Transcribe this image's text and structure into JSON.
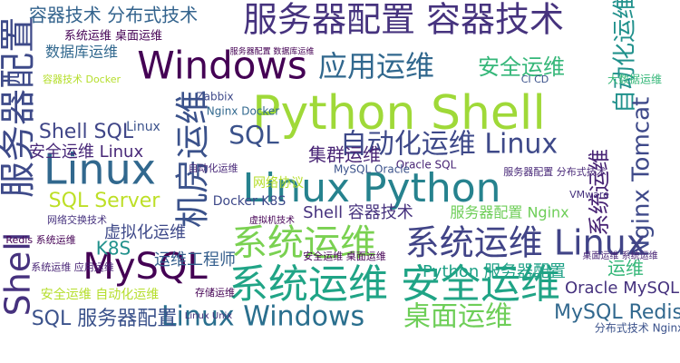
{
  "chart_data": {
    "type": "wordcloud",
    "words": [
      {
        "text": "Python Shell",
        "color": "#9fd938"
      },
      {
        "text": "服务器配置 容器技术",
        "color": "#46337e"
      },
      {
        "text": "Windows",
        "color": "#440154"
      },
      {
        "text": "应用运维",
        "color": "#31688e"
      },
      {
        "text": "安全运维",
        "color": "#35b779"
      },
      {
        "text": "自动化运维",
        "color": "#21918c"
      },
      {
        "text": "Linux",
        "color": "#31688e"
      },
      {
        "text": "服务器配置",
        "color": "#3e4a89"
      },
      {
        "text": "Shell",
        "color": "#46327e"
      },
      {
        "text": "机房运维",
        "color": "#3b528b"
      },
      {
        "text": "Linux Python",
        "color": "#26828e"
      },
      {
        "text": "自动化运维 Linux",
        "color": "#3e4989"
      },
      {
        "text": "Nginx Tomcat",
        "color": "#3e4989"
      },
      {
        "text": "系统运维",
        "color": "#482475"
      },
      {
        "text": "系统运维",
        "color": "#7ad151"
      },
      {
        "text": "系统运维 Linux",
        "color": "#414487"
      },
      {
        "text": "MySQL",
        "color": "#440154"
      },
      {
        "text": "系统运维 安全运维",
        "color": "#20a486"
      },
      {
        "text": "Linux Windows",
        "color": "#2a6f8e"
      },
      {
        "text": "桌面运维",
        "color": "#6ece58"
      },
      {
        "text": "SQL 服务器配置",
        "color": "#3b528b"
      },
      {
        "text": "MySQL Redis",
        "color": "#31688e"
      },
      {
        "text": "Oracle MySQL",
        "color": "#46327e"
      },
      {
        "text": "运维",
        "color": "#35b779"
      },
      {
        "text": "SQL",
        "color": "#3b528b"
      },
      {
        "text": "Shell SQL",
        "color": "#404688"
      },
      {
        "text": "安全运维 Linux",
        "color": "#482878"
      },
      {
        "text": "SQL Server",
        "color": "#bddf26"
      },
      {
        "text": "容器技术 分布式技术",
        "color": "#33638d"
      },
      {
        "text": "K8S",
        "color": "#21918c"
      },
      {
        "text": "虚拟化运维",
        "color": "#3e4989"
      },
      {
        "text": "运维工程师",
        "color": "#355f8d"
      },
      {
        "text": "集群运维",
        "color": "#482475"
      },
      {
        "text": "Shell 容器技术",
        "color": "#46327e"
      },
      {
        "text": "服务器配置 Nginx",
        "color": "#6ece58"
      },
      {
        "text": "Python 服务器配置",
        "color": "#1fa187"
      },
      {
        "text": "安全运维 自动化运维",
        "color": "#b5de2b"
      },
      {
        "text": "数据库运维",
        "color": "#31688e"
      },
      {
        "text": "系统运维 桌面运维",
        "color": "#440154"
      },
      {
        "text": "网络协议",
        "color": "#b5de2b"
      },
      {
        "text": "Docker K8S",
        "color": "#3e4989"
      },
      {
        "text": "VMware",
        "color": "#46327e"
      },
      {
        "text": "Oracle SQL",
        "color": "#482475"
      },
      {
        "text": "MySQL Oracle",
        "color": "#3b528b"
      },
      {
        "text": "Nginx Docker",
        "color": "#31688e"
      },
      {
        "text": "Zabbix",
        "color": "#3e4989"
      },
      {
        "text": "服务器配置 分布式技术",
        "color": "#482878"
      },
      {
        "text": "存储运维",
        "color": "#440154"
      },
      {
        "text": "Redis 系统运维",
        "color": "#440154"
      },
      {
        "text": "网络交换技术",
        "color": "#46327e"
      },
      {
        "text": "桌面运维 系统运维",
        "color": "#482475"
      },
      {
        "text": "分布式技术 Nginx",
        "color": "#3b528b"
      },
      {
        "text": "大数据运维",
        "color": "#35b779"
      },
      {
        "text": "容器技术 Docker",
        "color": "#b5de2b"
      },
      {
        "text": "Linux Unix",
        "color": "#46327e"
      },
      {
        "text": "安全运维 桌面运维",
        "color": "#440154"
      },
      {
        "text": "系统运维 应用运维",
        "color": "#482475"
      },
      {
        "text": "虚拟机技术",
        "color": "#440154"
      },
      {
        "text": "自动化运维",
        "color": "#482878"
      },
      {
        "text": "服务器配置 数据库运维",
        "color": "#440154"
      },
      {
        "text": "CI CD",
        "color": "#3b528b"
      },
      {
        "text": "Linux",
        "color": "#3b528b"
      }
    ]
  }
}
